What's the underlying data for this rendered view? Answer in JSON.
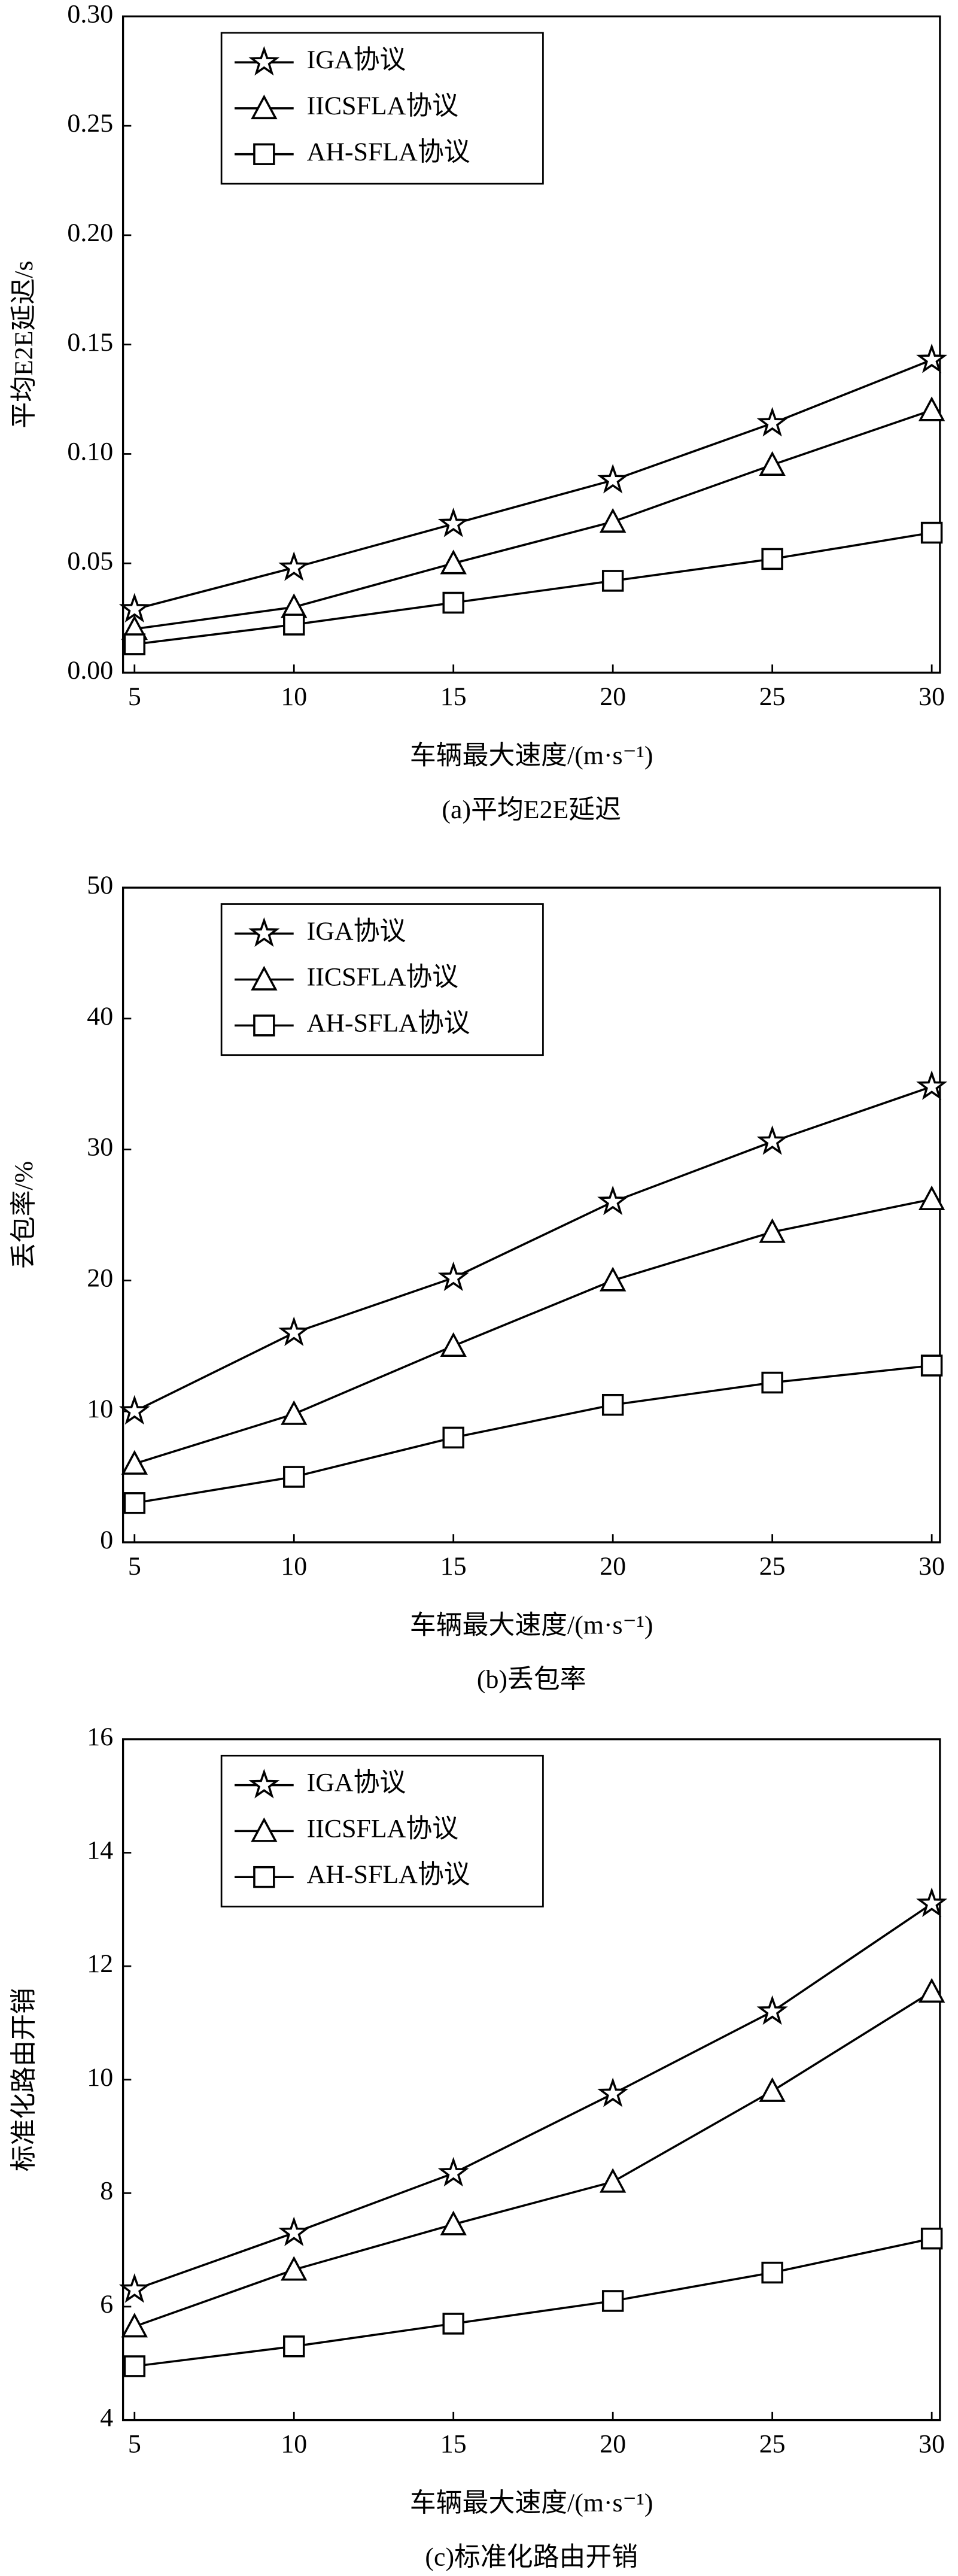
{
  "chart_data": [
    {
      "type": "line",
      "title": "(a)平均E2E延迟",
      "x_label": "车辆最大速度/(m·s⁻¹)",
      "y_label": "平均E2E延迟/s",
      "x": [
        5,
        10,
        15,
        20,
        25,
        30
      ],
      "xlim": [
        5,
        30
      ],
      "xticks": [
        5,
        10,
        15,
        20,
        25,
        30
      ],
      "ylim": [
        0,
        0.3
      ],
      "yticks": [
        {
          "value": 0,
          "label": "0.00"
        },
        {
          "value": 0.05,
          "label": "0.05"
        },
        {
          "value": 0.1,
          "label": "0.10"
        },
        {
          "value": 0.15,
          "label": "0.15"
        },
        {
          "value": 0.2,
          "label": "0.20"
        },
        {
          "value": 0.25,
          "label": "0.25"
        },
        {
          "value": 0.3,
          "label": "0.30"
        }
      ],
      "legend": "upper left",
      "series": [
        {
          "name": "IGA协议",
          "color": "#000000",
          "marker": "star",
          "values": [
            0.029,
            0.048,
            0.068,
            0.088,
            0.114,
            0.143
          ]
        },
        {
          "name": "IICSFLA协议",
          "color": "#000000",
          "marker": "triangle",
          "values": [
            0.02,
            0.03,
            0.05,
            0.069,
            0.095,
            0.12
          ]
        },
        {
          "name": "AH-SFLA协议",
          "color": "#000000",
          "marker": "square",
          "values": [
            0.013,
            0.022,
            0.032,
            0.042,
            0.052,
            0.064
          ]
        }
      ]
    },
    {
      "type": "line",
      "title": "(b)丢包率",
      "x_label": "车辆最大速度/(m·s⁻¹)",
      "y_label": "丢包率/%",
      "x": [
        5,
        10,
        15,
        20,
        25,
        30
      ],
      "xlim": [
        5,
        30
      ],
      "xticks": [
        5,
        10,
        15,
        20,
        25,
        30
      ],
      "ylim": [
        0,
        50
      ],
      "yticks": [
        0,
        10,
        20,
        30,
        40,
        50
      ],
      "legend": "upper left",
      "series": [
        {
          "name": "IGA协议",
          "color": "#000000",
          "marker": "star",
          "values": [
            10,
            16,
            20.2,
            26,
            30.6,
            34.8
          ]
        },
        {
          "name": "IICSFLA协议",
          "color": "#000000",
          "marker": "triangle",
          "values": [
            6,
            9.8,
            15,
            20,
            23.7,
            26.2
          ]
        },
        {
          "name": "AH-SFLA协议",
          "color": "#000000",
          "marker": "square",
          "values": [
            3,
            5,
            8,
            10.5,
            12.2,
            13.5
          ]
        }
      ]
    },
    {
      "type": "line",
      "title": "(c)标准化路由开销",
      "x_label": "车辆最大速度/(m·s⁻¹)",
      "y_label": "标准化路由开销",
      "x": [
        5,
        10,
        15,
        20,
        25,
        30
      ],
      "xlim": [
        5,
        30
      ],
      "xticks": [
        5,
        10,
        15,
        20,
        25,
        30
      ],
      "ylim": [
        4,
        16
      ],
      "yticks": [
        4,
        6,
        8,
        10,
        12,
        14,
        16
      ],
      "legend": "upper left",
      "series": [
        {
          "name": "IGA协议",
          "color": "#000000",
          "marker": "star",
          "values": [
            6.3,
            7.3,
            8.35,
            9.75,
            11.2,
            13.1
          ]
        },
        {
          "name": "IICSFLA协议",
          "color": "#000000",
          "marker": "triangle",
          "values": [
            5.65,
            6.65,
            7.45,
            8.2,
            9.8,
            11.55
          ]
        },
        {
          "name": "AH-SFLA协议",
          "color": "#000000",
          "marker": "square",
          "values": [
            4.95,
            5.3,
            5.7,
            6.1,
            6.6,
            7.2
          ]
        }
      ]
    }
  ]
}
